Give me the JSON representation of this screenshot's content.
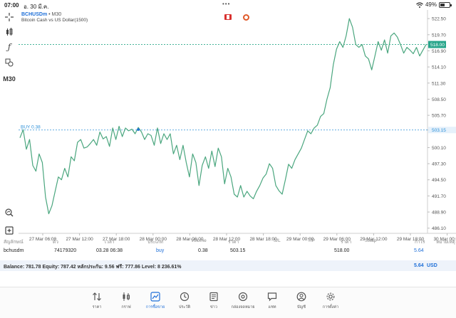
{
  "status_bar": {
    "time": "07:00",
    "date": "อ. 30 มี.ค.",
    "battery": "49%"
  },
  "chart_header": {
    "symbol": "BCHUSDm",
    "timeframe": "M30",
    "description": "Bitcoin Cash vs US Dollar(1500)"
  },
  "left_toolbar": {
    "timeframe_label": "M30"
  },
  "chart_data": {
    "type": "line",
    "x_labels": [
      "27 Mar 06:00",
      "27 Mar 12:00",
      "27 Mar 18:00",
      "28 Mar 00:00",
      "28 Mar 06:00",
      "28 Mar 12:00",
      "28 Mar 18:00",
      "29 Mar 00:00",
      "29 Mar 06:00",
      "29 Mar 12:00",
      "29 Mar 18:00",
      "30 Mar 00:00"
    ],
    "y_ticks": [
      "522.50",
      "519.70",
      "516.90",
      "514.10",
      "511.30",
      "508.50",
      "505.70",
      "503.15",
      "500.10",
      "497.30",
      "494.50",
      "491.70",
      "488.90",
      "486.10"
    ],
    "ylim": [
      485.2,
      524.0
    ],
    "current_price": "518.00",
    "current_price_value": 518.0,
    "buy_line_label": "BUY 0.38",
    "buy_line_price": 503.15,
    "line_color": "#4aa67e",
    "buy_line_color": "#2a8fd8",
    "price_line_color": "#2aa88a",
    "values": [
      501.8,
      503.2,
      499.8,
      501.5,
      497.0,
      496.0,
      499.0,
      497.5,
      491.5,
      488.6,
      490.0,
      492.5,
      495.0,
      494.5,
      496.5,
      495.0,
      498.5,
      497.8,
      501.0,
      501.5,
      500.0,
      500.2,
      500.8,
      501.5,
      500.5,
      502.8,
      501.6,
      502.0,
      500.3,
      503.5,
      501.5,
      503.8,
      502.0,
      503.5,
      503.0,
      503.3,
      502.5,
      503.6,
      502.8,
      501.5,
      502.5,
      502.2,
      500.5,
      503.5,
      500.8,
      502.5,
      501.5,
      502.5,
      499.0,
      500.5,
      498.0,
      500.5,
      497.5,
      495.0,
      499.0,
      497.5,
      493.5,
      497.0,
      498.5,
      496.5,
      499.5,
      496.8,
      500.0,
      498.5,
      493.8,
      496.5,
      495.0,
      492.0,
      491.5,
      493.5,
      491.5,
      492.5,
      491.7,
      491.2,
      492.5,
      493.5,
      494.8,
      495.5,
      497.3,
      496.5,
      493.5,
      492.6,
      492.0,
      494.5,
      497.2,
      496.5,
      498.0,
      499.0,
      500.0,
      501.5,
      503.0,
      502.5,
      503.5,
      504.0,
      505.5,
      506.0,
      508.5,
      510.5,
      514.5,
      517.2,
      518.5,
      517.5,
      519.5,
      522.5,
      521.0,
      518.0,
      517.5,
      518.0,
      516.0,
      515.5,
      513.6,
      516.0,
      518.5,
      517.0,
      518.8,
      516.5,
      519.5,
      520.0,
      519.3,
      518.0,
      516.5,
      517.5,
      517.0,
      516.4,
      517.5,
      516.0,
      517.0,
      518.0
    ]
  },
  "table": {
    "headers": [
      "สัญลักษณ์",
      "ตั๋ว",
      "เวลา",
      "ประเภท",
      "Volume",
      "ราคา",
      "S/L",
      "T/P",
      "ราคา",
      "Swap",
      "กำไร",
      "หมายเหตุ"
    ],
    "row": {
      "symbol": "bchusdm",
      "ticket": "74179320",
      "time": "03.28 06:38",
      "type": "buy",
      "volume": "0.38",
      "open_price": "503.15",
      "sl": "",
      "tp": "",
      "price": "518.00",
      "swap": "",
      "profit": "5.64",
      "comment": ""
    },
    "balance_line": "Balance: 781.78 Equity: 787.42 หลักประกัน: 9.56 ฟรี: 777.86 Level: 8 236.61%",
    "total_profit": "5.64",
    "currency": "USD"
  },
  "nav": {
    "items": [
      {
        "label": "ราคา",
        "icon": "quotes-arrows-icon"
      },
      {
        "label": "กราฟ",
        "icon": "candlestick-chart-icon"
      },
      {
        "label": "การซื้อขาย",
        "icon": "trade-chart-icon"
      },
      {
        "label": "ประวัติ",
        "icon": "history-clock-icon"
      },
      {
        "label": "ข่าว",
        "icon": "news-icon"
      },
      {
        "label": "กล่องจดหมาย",
        "icon": "mailbox-at-icon"
      },
      {
        "label": "แชท",
        "icon": "chat-bubble-icon"
      },
      {
        "label": "บัญชี",
        "icon": "account-person-icon"
      },
      {
        "label": "การตั้งค่า",
        "icon": "gear-icon"
      }
    ],
    "active_index": 2,
    "active_color": "#1e6fd8"
  }
}
